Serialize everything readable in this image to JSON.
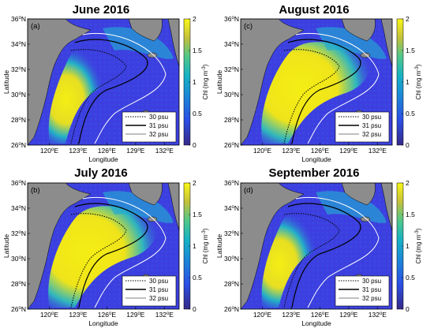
{
  "colors": {
    "land": "#8c8c8c",
    "sea_low": "#3d3fe0",
    "sea_mid": "#1fa7d6",
    "sea_high": "#f4ea18",
    "contour_white": "#ffffff",
    "contour_black": "#000000"
  },
  "colorbar": {
    "ticks": [
      "2",
      "1.5",
      "1",
      "0.5",
      "0"
    ],
    "label": "Chl (mg m",
    "label_exp": "-3",
    "label_close": ")"
  },
  "axes": {
    "x_ticks": [
      "120",
      "123",
      "126",
      "129",
      "132"
    ],
    "x_tick_suffix": "E",
    "y_ticks": [
      "36",
      "34",
      "32",
      "30",
      "28",
      "26"
    ],
    "y_tick_suffix": "N",
    "degree": "o",
    "xlabel": "Longitude",
    "ylabel": "Latitude"
  },
  "legend": [
    {
      "style": "dotted",
      "label": "30 psu"
    },
    {
      "style": "solid",
      "label": "31 psu"
    },
    {
      "style": "thin",
      "label": "32 psu"
    }
  ],
  "panels": [
    {
      "title": "June 2016",
      "letter": "(a)",
      "chl_level": "high-coastal"
    },
    {
      "title": "August 2016",
      "letter": "(c)",
      "chl_level": "high-plume"
    },
    {
      "title": "July 2016",
      "letter": "(b)",
      "chl_level": "high-plume"
    },
    {
      "title": "September 2016",
      "letter": "(d)",
      "chl_level": "high-coastal"
    }
  ]
}
